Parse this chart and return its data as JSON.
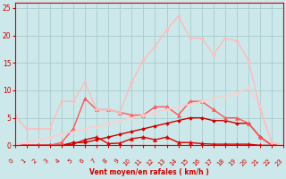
{
  "bg_color": "#cce8ea",
  "grid_color": "#aacccc",
  "xlabel": "Vent moyen/en rafales ( km/h )",
  "xlabel_color": "#cc0000",
  "tick_color": "#cc0000",
  "spine_color": "#cc0000",
  "xlim": [
    0,
    23
  ],
  "ylim": [
    0,
    26
  ],
  "yticks": [
    0,
    5,
    10,
    15,
    20,
    25
  ],
  "xticks": [
    0,
    1,
    2,
    3,
    4,
    5,
    6,
    7,
    8,
    9,
    10,
    11,
    12,
    13,
    14,
    15,
    16,
    17,
    18,
    19,
    20,
    21,
    22,
    23
  ],
  "lines": [
    {
      "x": [
        0,
        1,
        2,
        3,
        4,
        5,
        6,
        7,
        8,
        9,
        10,
        11,
        12,
        13,
        14,
        15,
        16,
        17,
        18,
        19,
        20,
        21,
        22,
        23
      ],
      "y": [
        0,
        0,
        0,
        0,
        0,
        0,
        0,
        0,
        0,
        0,
        0,
        0,
        0,
        0,
        0,
        0,
        0,
        0,
        0,
        0,
        0,
        0,
        0,
        0
      ],
      "color": "#ffaaaa",
      "lw": 0.8,
      "marker": "D",
      "ms": 2.0
    },
    {
      "x": [
        0,
        1,
        2,
        3,
        4,
        5,
        6,
        7,
        8,
        9,
        10,
        11,
        12,
        13,
        14,
        15,
        16,
        17,
        18,
        19,
        20,
        21,
        22,
        23
      ],
      "y": [
        0,
        0,
        0,
        0,
        0,
        0.2,
        1.0,
        1.5,
        0.3,
        0.4,
        1.2,
        1.5,
        1.0,
        1.5,
        0.5,
        0.5,
        0.3,
        0.2,
        0.2,
        0.2,
        0.2,
        0.0,
        0,
        0
      ],
      "color": "#dd0000",
      "lw": 1.0,
      "marker": "^",
      "ms": 3.0
    },
    {
      "x": [
        0,
        1,
        2,
        3,
        4,
        5,
        6,
        7,
        8,
        9,
        10,
        11,
        12,
        13,
        14,
        15,
        16,
        17,
        18,
        19,
        20,
        21,
        22,
        23
      ],
      "y": [
        0,
        0,
        0,
        0,
        0,
        0.5,
        0.5,
        1.0,
        1.5,
        2.0,
        2.5,
        3.0,
        3.5,
        4.0,
        4.5,
        5.0,
        5.0,
        4.5,
        4.5,
        4.0,
        4.0,
        1.5,
        0,
        0
      ],
      "color": "#cc0000",
      "lw": 1.0,
      "marker": "D",
      "ms": 2.0
    },
    {
      "x": [
        0,
        1,
        2,
        3,
        4,
        5,
        6,
        7,
        8,
        9,
        10,
        11,
        12,
        13,
        14,
        15,
        16,
        17,
        18,
        19,
        20,
        21,
        22,
        23
      ],
      "y": [
        0,
        0,
        0,
        0,
        0.5,
        3.0,
        8.5,
        6.5,
        6.5,
        6.0,
        5.5,
        5.5,
        7.0,
        7.0,
        5.5,
        8.0,
        8.0,
        6.5,
        5.0,
        5.0,
        4.0,
        1.5,
        0,
        0
      ],
      "color": "#ff5555",
      "lw": 1.0,
      "marker": "^",
      "ms": 3.0
    },
    {
      "x": [
        0,
        1,
        2,
        3,
        4,
        5,
        6,
        7,
        8,
        9,
        10,
        11,
        12,
        13,
        14,
        15,
        16,
        17,
        18,
        19,
        20,
        21,
        22,
        23
      ],
      "y": [
        0,
        0.5,
        1,
        1.5,
        2,
        2.5,
        3,
        3.5,
        4,
        4.5,
        5,
        5.5,
        6,
        6.5,
        7,
        7.5,
        8,
        8.5,
        9,
        9.5,
        10.5,
        7,
        0.5,
        0
      ],
      "color": "#ffcccc",
      "lw": 1.0,
      "marker": "D",
      "ms": 2.0
    },
    {
      "x": [
        0,
        1,
        2,
        3,
        4,
        5,
        6,
        7,
        8,
        9,
        10,
        11,
        12,
        13,
        14,
        15,
        16,
        17,
        18,
        19,
        20,
        21,
        22,
        23
      ],
      "y": [
        5.5,
        3.0,
        3.0,
        3.0,
        8.0,
        8.0,
        11.5,
        6.5,
        6.5,
        6.0,
        11.5,
        15.5,
        18.0,
        21.0,
        23.5,
        19.5,
        19.5,
        16.5,
        19.5,
        19.0,
        15.5,
        6.5,
        0.5,
        0
      ],
      "color": "#ffbbbb",
      "lw": 1.0,
      "marker": "D",
      "ms": 2.0
    }
  ]
}
